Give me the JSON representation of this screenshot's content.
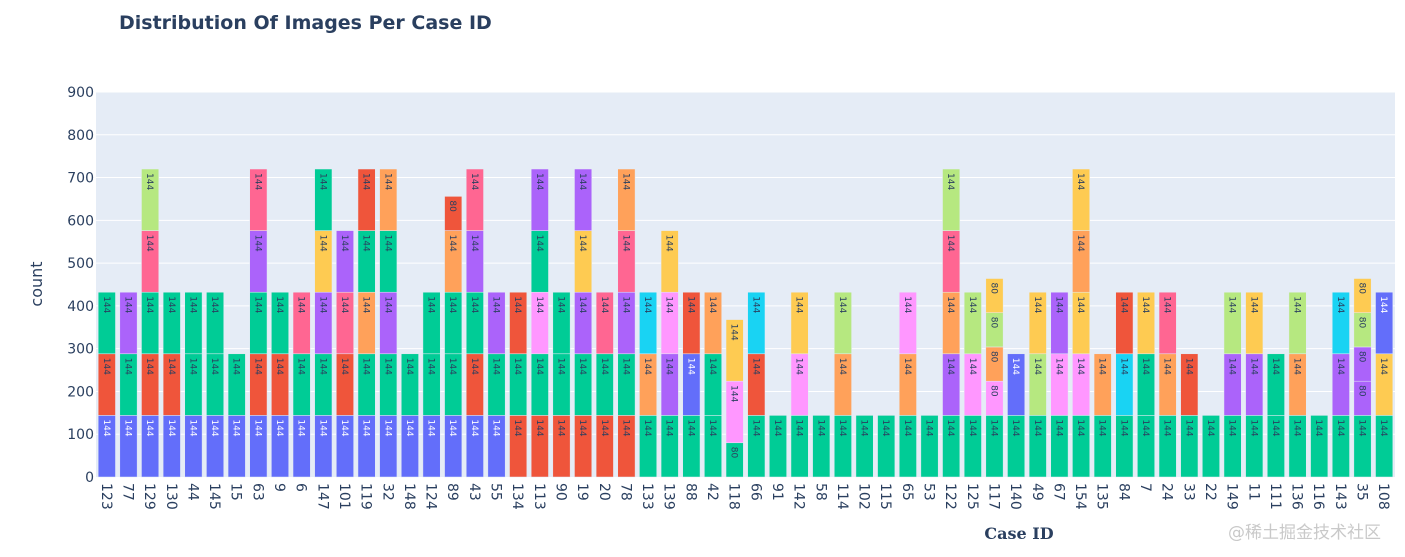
{
  "chart_data": {
    "type": "bar",
    "barmode": "stack",
    "title": "Distribution Of Images Per Case ID",
    "xlabel": "Case ID",
    "ylabel": "count",
    "ylim": [
      0,
      900
    ],
    "yticks": [
      0,
      100,
      200,
      300,
      400,
      500,
      600,
      700,
      800,
      900
    ],
    "grid": true,
    "palette": {
      "blue": "#636EFA",
      "red": "#EF553B",
      "green": "#00CC96",
      "purple": "#AB63FA",
      "orange": "#FFA15A",
      "cyan": "#19D3F3",
      "pink": "#FF6692",
      "lightgreen": "#B6E880",
      "lightpink": "#FF97FF",
      "yellow": "#FECB52"
    },
    "plot_bg": "#E5ECF6",
    "categories": [
      "123",
      "77",
      "129",
      "130",
      "44",
      "145",
      "15",
      "63",
      "9",
      "6",
      "147",
      "101",
      "119",
      "32",
      "148",
      "124",
      "89",
      "43",
      "55",
      "134",
      "113",
      "90",
      "19",
      "20",
      "78",
      "133",
      "139",
      "88",
      "42",
      "118",
      "66",
      "91",
      "142",
      "58",
      "114",
      "102",
      "115",
      "65",
      "53",
      "122",
      "125",
      "117",
      "140",
      "49",
      "67",
      "154",
      "135",
      "84",
      "7",
      "24",
      "33",
      "22",
      "149",
      "11",
      "111",
      "136",
      "116",
      "143",
      "35",
      "108"
    ],
    "stacks": [
      [
        [
          "blue",
          144
        ],
        [
          "red",
          144
        ],
        [
          "green",
          144
        ]
      ],
      [
        [
          "blue",
          144
        ],
        [
          "green",
          144
        ],
        [
          "purple",
          144
        ]
      ],
      [
        [
          "blue",
          144
        ],
        [
          "red",
          144
        ],
        [
          "green",
          144
        ],
        [
          "pink",
          144
        ],
        [
          "lightgreen",
          144
        ]
      ],
      [
        [
          "blue",
          144
        ],
        [
          "red",
          144
        ],
        [
          "green",
          144
        ]
      ],
      [
        [
          "blue",
          144
        ],
        [
          "green",
          144
        ],
        [
          "green",
          144
        ]
      ],
      [
        [
          "blue",
          144
        ],
        [
          "green",
          144
        ],
        [
          "green",
          144
        ]
      ],
      [
        [
          "blue",
          144
        ],
        [
          "green",
          144
        ]
      ],
      [
        [
          "blue",
          144
        ],
        [
          "red",
          144
        ],
        [
          "green",
          144
        ],
        [
          "purple",
          144
        ],
        [
          "pink",
          144
        ]
      ],
      [
        [
          "blue",
          144
        ],
        [
          "red",
          144
        ],
        [
          "green",
          144
        ]
      ],
      [
        [
          "blue",
          144
        ],
        [
          "green",
          144
        ],
        [
          "pink",
          144
        ]
      ],
      [
        [
          "blue",
          144
        ],
        [
          "green",
          144
        ],
        [
          "purple",
          144
        ],
        [
          "yellow",
          144
        ],
        [
          "green",
          144
        ]
      ],
      [
        [
          "blue",
          144
        ],
        [
          "red",
          144
        ],
        [
          "pink",
          144
        ],
        [
          "purple",
          144
        ]
      ],
      [
        [
          "blue",
          144
        ],
        [
          "green",
          144
        ],
        [
          "orange",
          144
        ],
        [
          "green",
          144
        ],
        [
          "red",
          144
        ]
      ],
      [
        [
          "blue",
          144
        ],
        [
          "green",
          144
        ],
        [
          "purple",
          144
        ],
        [
          "green",
          144
        ],
        [
          "orange",
          144
        ]
      ],
      [
        [
          "blue",
          144
        ],
        [
          "green",
          144
        ]
      ],
      [
        [
          "blue",
          144
        ],
        [
          "green",
          144
        ],
        [
          "green",
          144
        ]
      ],
      [
        [
          "blue",
          144
        ],
        [
          "green",
          144
        ],
        [
          "green",
          144
        ],
        [
          "orange",
          144
        ],
        [
          "red",
          80
        ]
      ],
      [
        [
          "blue",
          144
        ],
        [
          "red",
          144
        ],
        [
          "green",
          144
        ],
        [
          "purple",
          144
        ],
        [
          "pink",
          144
        ]
      ],
      [
        [
          "blue",
          144
        ],
        [
          "green",
          144
        ],
        [
          "purple",
          144
        ]
      ],
      [
        [
          "red",
          144
        ],
        [
          "green",
          144
        ],
        [
          "red",
          144
        ]
      ],
      [
        [
          "red",
          144
        ],
        [
          "green",
          144
        ],
        [
          "lightpink",
          144
        ],
        [
          "green",
          144
        ],
        [
          "purple",
          144
        ]
      ],
      [
        [
          "red",
          144
        ],
        [
          "green",
          144
        ],
        [
          "green",
          144
        ]
      ],
      [
        [
          "red",
          144
        ],
        [
          "green",
          144
        ],
        [
          "purple",
          144
        ],
        [
          "yellow",
          144
        ],
        [
          "purple",
          144
        ]
      ],
      [
        [
          "red",
          144
        ],
        [
          "green",
          144
        ],
        [
          "pink",
          144
        ]
      ],
      [
        [
          "red",
          144
        ],
        [
          "green",
          144
        ],
        [
          "purple",
          144
        ],
        [
          "pink",
          144
        ],
        [
          "orange",
          144
        ]
      ],
      [
        [
          "green",
          144
        ],
        [
          "orange",
          144
        ],
        [
          "cyan",
          144
        ]
      ],
      [
        [
          "green",
          144
        ],
        [
          "purple",
          144
        ],
        [
          "lightpink",
          144
        ],
        [
          "yellow",
          144
        ]
      ],
      [
        [
          "green",
          144
        ],
        [
          "blue",
          144
        ],
        [
          "red",
          144
        ]
      ],
      [
        [
          "green",
          144
        ],
        [
          "green",
          144
        ],
        [
          "orange",
          144
        ]
      ],
      [
        [
          "green",
          80
        ],
        [
          "lightpink",
          144
        ],
        [
          "yellow",
          144
        ]
      ],
      [
        [
          "green",
          144
        ],
        [
          "red",
          144
        ],
        [
          "cyan",
          144
        ]
      ],
      [
        [
          "green",
          144
        ]
      ],
      [
        [
          "green",
          144
        ],
        [
          "lightpink",
          144
        ],
        [
          "yellow",
          144
        ]
      ],
      [
        [
          "green",
          144
        ]
      ],
      [
        [
          "green",
          144
        ],
        [
          "orange",
          144
        ],
        [
          "lightgreen",
          144
        ]
      ],
      [
        [
          "green",
          144
        ]
      ],
      [
        [
          "green",
          144
        ]
      ],
      [
        [
          "green",
          144
        ],
        [
          "orange",
          144
        ],
        [
          "lightpink",
          144
        ]
      ],
      [
        [
          "green",
          144
        ]
      ],
      [
        [
          "green",
          144
        ],
        [
          "purple",
          144
        ],
        [
          "orange",
          144
        ],
        [
          "pink",
          144
        ],
        [
          "lightgreen",
          144
        ]
      ],
      [
        [
          "green",
          144
        ],
        [
          "lightpink",
          144
        ],
        [
          "lightgreen",
          144
        ]
      ],
      [
        [
          "green",
          144
        ],
        [
          "lightpink",
          80
        ],
        [
          "orange",
          80
        ],
        [
          "lightgreen",
          80
        ],
        [
          "yellow",
          80
        ]
      ],
      [
        [
          "green",
          144
        ],
        [
          "blue",
          144
        ]
      ],
      [
        [
          "green",
          144
        ],
        [
          "lightgreen",
          144
        ],
        [
          "yellow",
          144
        ]
      ],
      [
        [
          "green",
          144
        ],
        [
          "lightpink",
          144
        ],
        [
          "purple",
          144
        ]
      ],
      [
        [
          "green",
          144
        ],
        [
          "lightpink",
          144
        ],
        [
          "yellow",
          144
        ],
        [
          "orange",
          144
        ],
        [
          "yellow",
          144
        ]
      ],
      [
        [
          "green",
          144
        ],
        [
          "orange",
          144
        ]
      ],
      [
        [
          "green",
          144
        ],
        [
          "cyan",
          144
        ],
        [
          "red",
          144
        ]
      ],
      [
        [
          "green",
          144
        ],
        [
          "green",
          144
        ],
        [
          "yellow",
          144
        ]
      ],
      [
        [
          "green",
          144
        ],
        [
          "orange",
          144
        ],
        [
          "pink",
          144
        ]
      ],
      [
        [
          "green",
          144
        ],
        [
          "red",
          144
        ]
      ],
      [
        [
          "green",
          144
        ]
      ],
      [
        [
          "green",
          144
        ],
        [
          "purple",
          144
        ],
        [
          "lightgreen",
          144
        ]
      ],
      [
        [
          "green",
          144
        ],
        [
          "purple",
          144
        ],
        [
          "yellow",
          144
        ]
      ],
      [
        [
          "green",
          144
        ],
        [
          "green",
          144
        ]
      ],
      [
        [
          "green",
          144
        ],
        [
          "orange",
          144
        ],
        [
          "lightgreen",
          144
        ]
      ],
      [
        [
          "green",
          144
        ]
      ],
      [
        [
          "green",
          144
        ],
        [
          "purple",
          144
        ],
        [
          "cyan",
          144
        ]
      ],
      [
        [
          "green",
          144
        ],
        [
          "purple",
          80
        ],
        [
          "purple",
          80
        ],
        [
          "lightgreen",
          80
        ],
        [
          "yellow",
          80
        ]
      ],
      [
        [
          "green",
          144
        ],
        [
          "yellow",
          144
        ],
        [
          "blue",
          144
        ]
      ]
    ]
  },
  "watermark": "@稀土掘金技术社区"
}
